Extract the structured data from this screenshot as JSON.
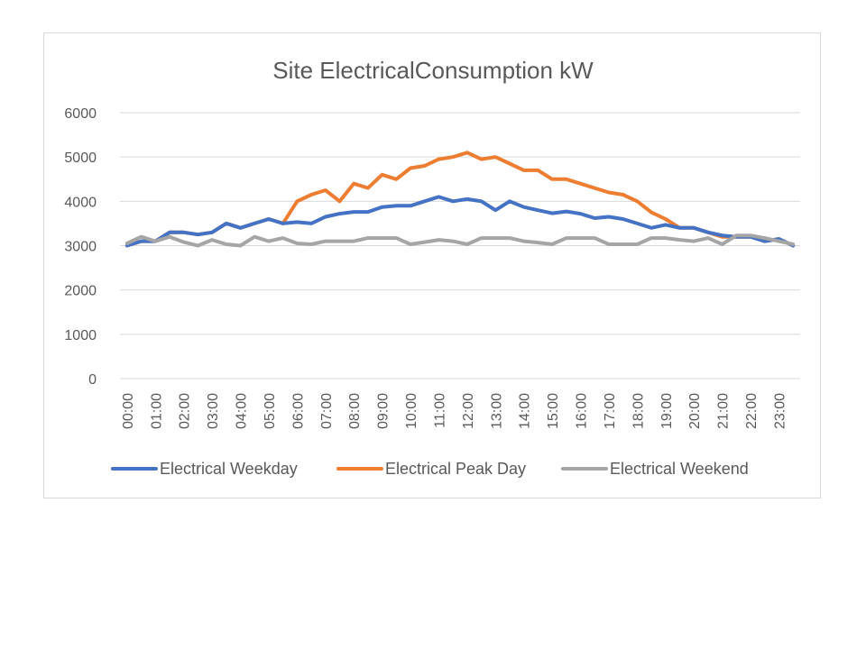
{
  "chart_data": {
    "type": "line",
    "title": "Site ElectricalConsumption kW",
    "xlabel": "",
    "ylabel": "",
    "ylim": [
      0,
      6000
    ],
    "yticks": [
      0,
      1000,
      2000,
      3000,
      4000,
      5000,
      6000
    ],
    "grid": true,
    "legend_position": "bottom",
    "x": [
      "00:00",
      "00:30",
      "01:00",
      "01:30",
      "02:00",
      "02:30",
      "03:00",
      "03:30",
      "04:00",
      "04:30",
      "05:00",
      "05:30",
      "06:00",
      "06:30",
      "07:00",
      "07:30",
      "08:00",
      "08:30",
      "09:00",
      "09:30",
      "10:00",
      "10:30",
      "11:00",
      "11:30",
      "12:00",
      "12:30",
      "13:00",
      "13:30",
      "14:00",
      "14:30",
      "15:00",
      "15:30",
      "16:00",
      "16:30",
      "17:00",
      "17:30",
      "18:00",
      "18:30",
      "19:00",
      "19:30",
      "20:00",
      "20:30",
      "21:00",
      "21:30",
      "22:00",
      "22:30",
      "23:00",
      "23:30"
    ],
    "x_tick_labels": [
      "00:00",
      "01:00",
      "02:00",
      "03:00",
      "04:00",
      "05:00",
      "06:00",
      "07:00",
      "08:00",
      "09:00",
      "10:00",
      "11:00",
      "12:00",
      "13:00",
      "14:00",
      "15:00",
      "16:00",
      "17:00",
      "18:00",
      "19:00",
      "20:00",
      "21:00",
      "22:00",
      "23:00"
    ],
    "series": [
      {
        "name": "Electrical Weekday",
        "color": "#4472c4",
        "values": [
          3000,
          3100,
          3100,
          3300,
          3300,
          3250,
          3300,
          3500,
          3400,
          3500,
          3600,
          3500,
          3530,
          3500,
          3650,
          3720,
          3760,
          3760,
          3870,
          3900,
          3900,
          4000,
          4100,
          4000,
          4050,
          4000,
          3800,
          4000,
          3870,
          3800,
          3730,
          3770,
          3720,
          3620,
          3650,
          3600,
          3500,
          3400,
          3470,
          3400,
          3400,
          3300,
          3230,
          3200,
          3200,
          3100,
          3150,
          3000
        ]
      },
      {
        "name": "Electrical Peak Day",
        "color": "#ed7d31",
        "values": [
          3000,
          3100,
          3100,
          3300,
          3300,
          3250,
          3300,
          3500,
          3400,
          3500,
          3600,
          3500,
          4000,
          4150,
          4250,
          4000,
          4400,
          4300,
          4600,
          4500,
          4750,
          4800,
          4950,
          5000,
          5100,
          4950,
          5000,
          4850,
          4700,
          4700,
          4500,
          4500,
          4400,
          4300,
          4200,
          4150,
          4000,
          3750,
          3600,
          3400,
          3400,
          3300,
          3200,
          3200,
          3200,
          3100,
          3150,
          3000
        ]
      },
      {
        "name": "Electrical Weekend",
        "color": "#a5a5a5",
        "values": [
          3050,
          3200,
          3100,
          3200,
          3080,
          3000,
          3130,
          3030,
          3000,
          3200,
          3100,
          3170,
          3050,
          3030,
          3100,
          3100,
          3100,
          3170,
          3170,
          3170,
          3030,
          3080,
          3130,
          3100,
          3030,
          3170,
          3170,
          3170,
          3100,
          3070,
          3030,
          3170,
          3170,
          3170,
          3030,
          3030,
          3030,
          3170,
          3170,
          3130,
          3100,
          3170,
          3030,
          3230,
          3230,
          3170,
          3100,
          3030
        ]
      }
    ]
  }
}
